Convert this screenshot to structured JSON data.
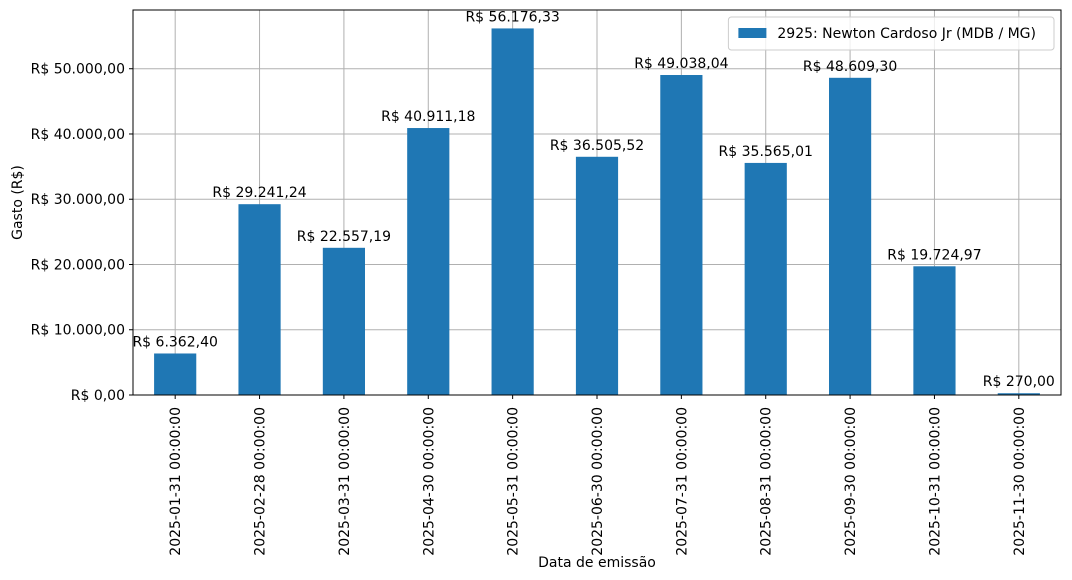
{
  "chart_data": {
    "type": "bar",
    "title": "",
    "xlabel": "Data de emissão",
    "ylabel": "Gasto (R$)",
    "ylim": [
      0,
      59000
    ],
    "y_ticks": [
      0,
      10000,
      20000,
      30000,
      40000,
      50000
    ],
    "y_tick_labels": [
      "R$ 0,00",
      "R$ 10.000,00",
      "R$ 20.000,00",
      "R$ 30.000,00",
      "R$ 40.000,00",
      "R$ 50.000,00"
    ],
    "grid": true,
    "legend_position": "top-right",
    "categories": [
      "2025-01-31 00:00:00",
      "2025-02-28 00:00:00",
      "2025-03-31 00:00:00",
      "2025-04-30 00:00:00",
      "2025-05-31 00:00:00",
      "2025-06-30 00:00:00",
      "2025-07-31 00:00:00",
      "2025-08-31 00:00:00",
      "2025-09-30 00:00:00",
      "2025-10-31 00:00:00",
      "2025-11-30 00:00:00"
    ],
    "series": [
      {
        "name": "2925: Newton Cardoso Jr (MDB / MG)",
        "color": "#1f77b4",
        "values": [
          6362.4,
          29241.24,
          22557.19,
          40911.18,
          56176.33,
          36505.52,
          49038.04,
          35565.01,
          48609.3,
          19724.97,
          270.0
        ],
        "value_labels": [
          "R$ 6.362,40",
          "R$ 29.241,24",
          "R$ 22.557,19",
          "R$ 40.911,18",
          "R$ 56.176,33",
          "R$ 36.505,52",
          "R$ 49.038,04",
          "R$ 35.565,01",
          "R$ 48.609,30",
          "R$ 19.724,97",
          "R$ 270,00"
        ]
      }
    ]
  }
}
